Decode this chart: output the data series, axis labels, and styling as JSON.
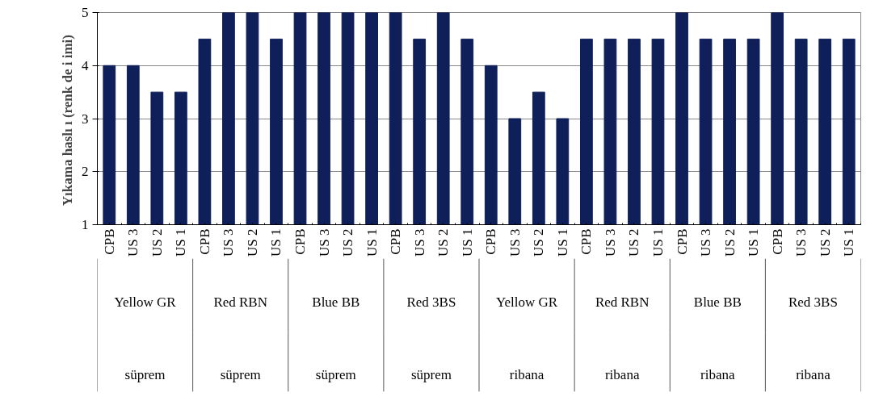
{
  "chart_data": {
    "type": "bar",
    "ylabel": "Yıkama haslı ı  (renk de i imi)",
    "categories": [
      "CPB",
      "US 3",
      "US 2",
      "US 1",
      "CPB",
      "US 3",
      "US 2",
      "US 1",
      "CPB",
      "US 3",
      "US 2",
      "US 1",
      "CPB",
      "US 3",
      "US 2",
      "US 1",
      "CPB",
      "US 3",
      "US 2",
      "US 1",
      "CPB",
      "US 3",
      "US 2",
      "US 1",
      "CPB",
      "US 3",
      "US 2",
      "US 1",
      "CPB",
      "US 3",
      "US 2",
      "US 1"
    ],
    "values": [
      4,
      4,
      3.5,
      3.5,
      4.5,
      5,
      5,
      4.5,
      5,
      5,
      5,
      5,
      5,
      4.5,
      5,
      4.5,
      4,
      3,
      3.5,
      3,
      4.5,
      4.5,
      4.5,
      4.5,
      5,
      4.5,
      4.5,
      4.5,
      5,
      4.5,
      4.5,
      4.5
    ],
    "color": "#0f1f5a",
    "ylim": [
      1,
      5
    ],
    "yticks": [
      1,
      2,
      3,
      4,
      5
    ],
    "grid": "y",
    "annotations": [
      "Yellow GR",
      "Red RBN",
      "Blue BB",
      "Red 3BS",
      "Yellow GR",
      "Red RBN",
      "Blue BB",
      "Red 3BS",
      "süprem",
      "süprem",
      "süprem",
      "süprem",
      "ribana",
      "ribana",
      "ribana",
      "ribana"
    ]
  }
}
